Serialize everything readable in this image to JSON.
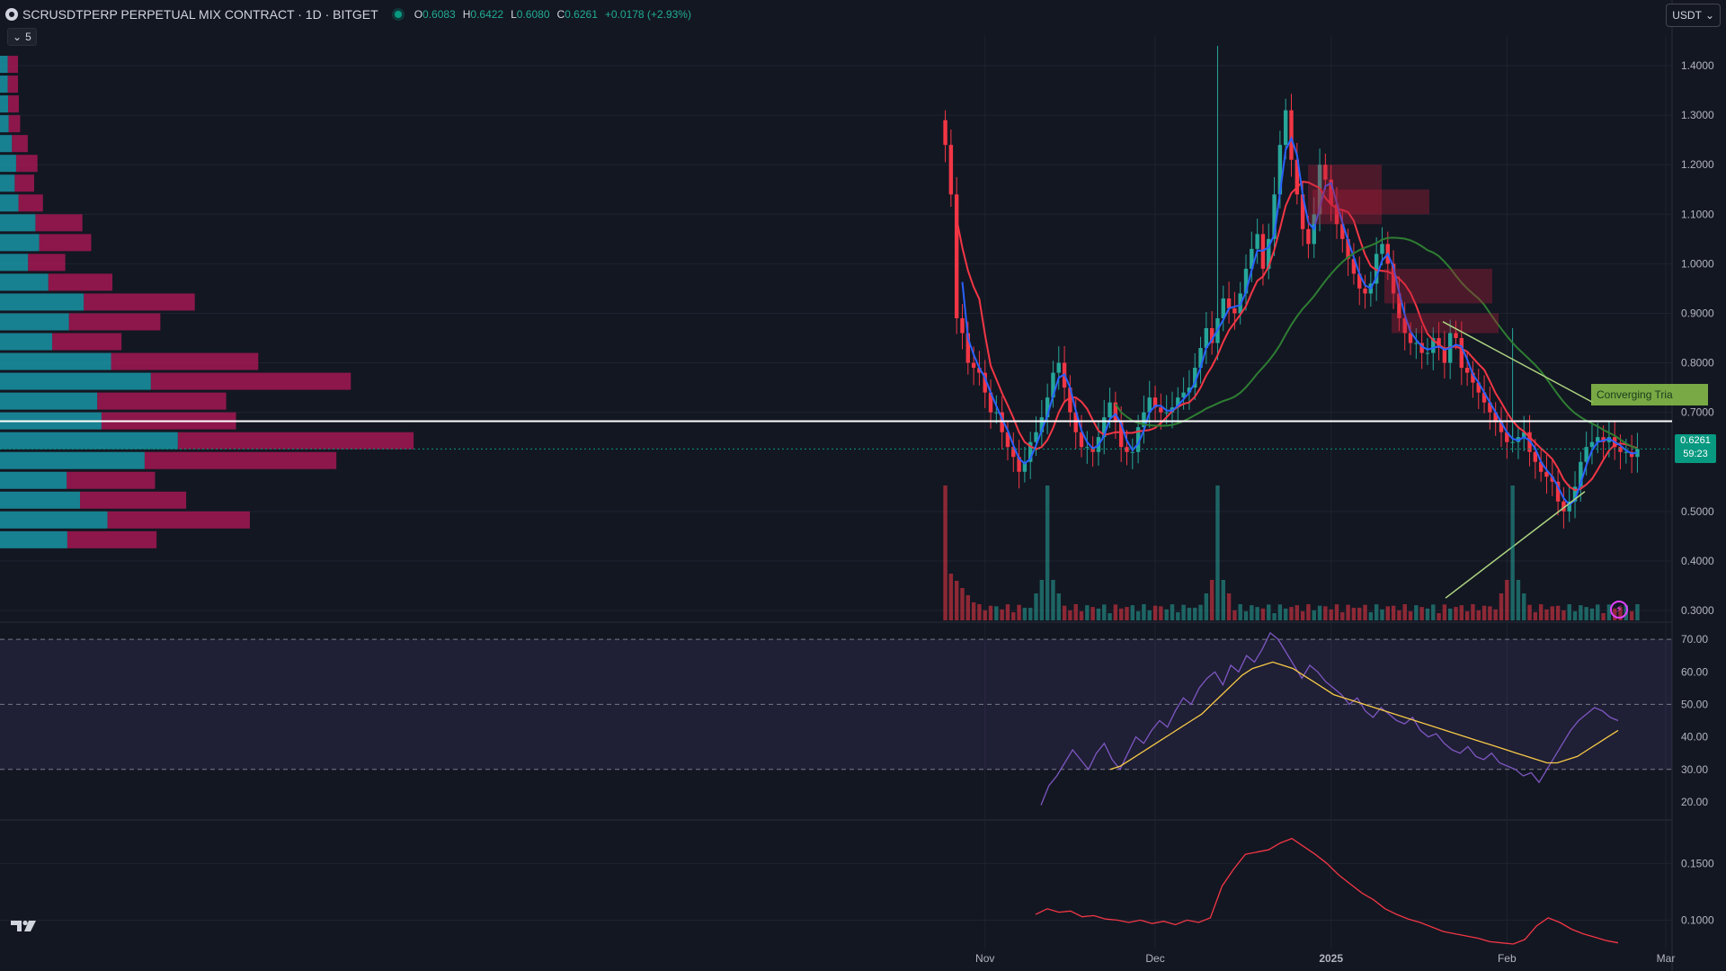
{
  "header": {
    "symbol": "SCRUSDTPERP PERPETUAL MIX CONTRACT · 1D · BITGET",
    "open_label": "O",
    "open": "0.6083",
    "high_label": "H",
    "high": "0.6422",
    "low_label": "L",
    "low": "0.6080",
    "close_label": "C",
    "close": "0.6261",
    "change": "+0.0178 (+2.93%)"
  },
  "vp_button": "5",
  "currency_button": "USDT",
  "last_price_tag": {
    "price": "0.6261",
    "countdown": "59:23"
  },
  "pattern_label": "Converging Tria",
  "colors": {
    "background": "#131722",
    "up": "#26a69a",
    "down": "#f23645",
    "vp_up": "#1aa6b7",
    "vp_down": "#c2185b",
    "rsi": "#7e57c2",
    "rsi_ma": "#f7c948"
  },
  "chart_data": [
    {
      "type": "candlestick",
      "panel": "price",
      "ylim": [
        0.28,
        1.46
      ],
      "y_ticks": [
        "1.4000",
        "1.3000",
        "1.2000",
        "1.1000",
        "1.0000",
        "0.9000",
        "0.8000",
        "0.7000",
        "0.5000",
        "0.4000",
        "0.3000"
      ],
      "x_labels": [
        "Nov",
        "Dec",
        "2025",
        "Feb",
        "Mar"
      ],
      "x_label_dates": [
        "2024-11-01",
        "2024-12-01",
        "2025-01-01",
        "2025-02-01",
        "2025-03-01"
      ],
      "x_range": [
        "2024-10-20",
        "2025-03-01"
      ],
      "start_date": "2024-10-25",
      "close_series": [
        1.24,
        1.14,
        0.89,
        0.86,
        0.8,
        0.79,
        0.78,
        0.74,
        0.7,
        0.7,
        0.66,
        0.63,
        0.61,
        0.58,
        0.6,
        0.64,
        0.66,
        0.69,
        0.73,
        0.78,
        0.8,
        0.75,
        0.7,
        0.66,
        0.63,
        0.63,
        0.62,
        0.65,
        0.69,
        0.72,
        0.68,
        0.63,
        0.62,
        0.62,
        0.67,
        0.7,
        0.73,
        0.71,
        0.7,
        0.7,
        0.71,
        0.73,
        0.74,
        0.75,
        0.79,
        0.83,
        0.87,
        0.84,
        0.89,
        0.93,
        0.91,
        0.9,
        0.94,
        0.99,
        1.03,
        1.06,
        0.99,
        1.05,
        1.14,
        1.24,
        1.31,
        1.21,
        1.14,
        1.07,
        1.04,
        1.1,
        1.2,
        1.17,
        1.12,
        1.08,
        1.05,
        1.01,
        0.98,
        0.95,
        0.94,
        0.96,
        1.02,
        1.04,
        1.0,
        0.94,
        0.89,
        0.86,
        0.84,
        0.84,
        0.82,
        0.82,
        0.85,
        0.83,
        0.8,
        0.86,
        0.85,
        0.79,
        0.78,
        0.76,
        0.74,
        0.72,
        0.7,
        0.68,
        0.66,
        0.64,
        0.64,
        0.65,
        0.66,
        0.62,
        0.6,
        0.58,
        0.57,
        0.56,
        0.52,
        0.5,
        0.52,
        0.55,
        0.6,
        0.63,
        0.64,
        0.65,
        0.64,
        0.65,
        0.63,
        0.62,
        0.62,
        0.61,
        0.6261
      ],
      "high_spikes": [
        {
          "date": "2024-11-21",
          "value": 0.61
        },
        {
          "date": "2024-12-12",
          "value": 1.44
        },
        {
          "date": "2025-02-02",
          "value": 0.87
        }
      ],
      "ma_lines": [
        {
          "color": "#f23645",
          "period": "short"
        },
        {
          "color": "#2962ff",
          "period": "fast"
        },
        {
          "color": "#2e7d32",
          "period": "long"
        }
      ],
      "horizontal_line": 0.682,
      "last_price": 0.6261
    },
    {
      "type": "histogram",
      "panel": "volume",
      "peak_dates": [
        "2024-10-25",
        "2024-11-12",
        "2024-12-12",
        "2025-02-02"
      ]
    },
    {
      "type": "line",
      "panel": "rsi",
      "ylim": [
        15,
        75
      ],
      "y_ticks": [
        "70.00",
        "60.00",
        "50.00",
        "40.00",
        "30.00",
        "20.00"
      ],
      "band": [
        30,
        70
      ],
      "series": [
        {
          "values": [
            19,
            25,
            28,
            32,
            36,
            33,
            30,
            35,
            38,
            33,
            30,
            35,
            40,
            38,
            42,
            45,
            43,
            48,
            52,
            50,
            55,
            58,
            60,
            56,
            62,
            60,
            65,
            63,
            67,
            72,
            70,
            66,
            62,
            58,
            62,
            60,
            57,
            55,
            53,
            50,
            52,
            48,
            46,
            49,
            47,
            45,
            44,
            46,
            42,
            40,
            41,
            38,
            36,
            35,
            37,
            34,
            33,
            35,
            32,
            31,
            30,
            28,
            29,
            26,
            30,
            34,
            38,
            42,
            45,
            47,
            49,
            48,
            46,
            45
          ]
        },
        {
          "values": [
            30,
            31,
            33,
            35,
            37,
            39,
            41,
            43,
            45,
            47,
            50,
            53,
            56,
            59,
            61,
            62,
            63,
            62,
            61,
            59,
            57,
            55,
            53,
            52,
            51,
            50,
            49,
            48,
            47,
            46,
            45,
            44,
            43,
            42,
            41,
            40,
            39,
            38,
            37,
            36,
            35,
            34,
            33,
            32,
            32,
            33,
            34,
            36,
            38,
            40,
            42
          ]
        }
      ]
    },
    {
      "type": "line",
      "panel": "indicator",
      "y_ticks": [
        "0.1500",
        "0.1000"
      ],
      "series": [
        {
          "values": [
            0.105,
            0.11,
            0.107,
            0.108,
            0.103,
            0.104,
            0.101,
            0.1,
            0.098,
            0.1,
            0.097,
            0.099,
            0.096,
            0.1,
            0.098,
            0.102,
            0.13,
            0.145,
            0.158,
            0.16,
            0.162,
            0.168,
            0.172,
            0.165,
            0.158,
            0.15,
            0.14,
            0.132,
            0.124,
            0.118,
            0.11,
            0.105,
            0.101,
            0.098,
            0.094,
            0.09,
            0.088,
            0.086,
            0.084,
            0.081,
            0.08,
            0.079,
            0.083,
            0.095,
            0.102,
            0.098,
            0.092,
            0.088,
            0.085,
            0.082,
            0.08
          ]
        }
      ]
    }
  ]
}
